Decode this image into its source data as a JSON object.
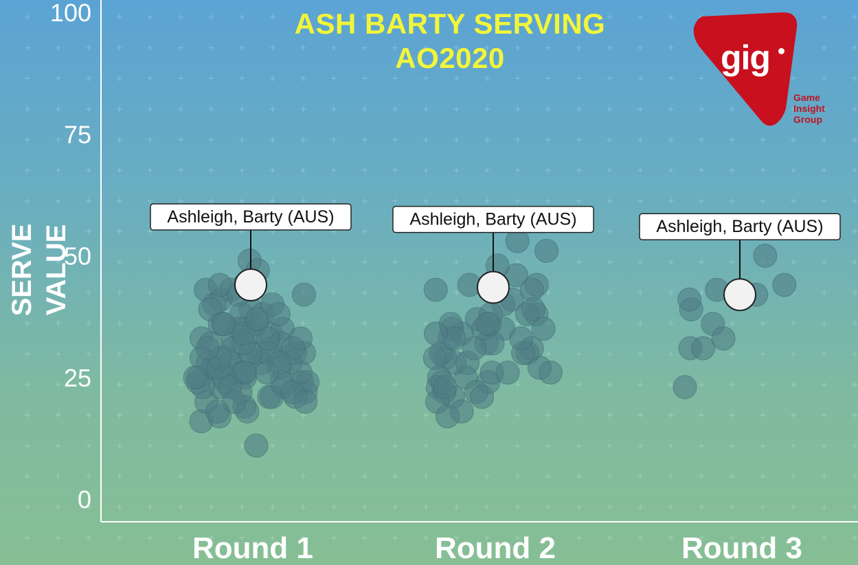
{
  "title": [
    "ASH BARTY SERVING",
    "AO2020"
  ],
  "logo": {
    "mark": "gig",
    "subtitle": [
      "Game",
      "Insight",
      "Group"
    ]
  },
  "colors": {
    "point": "#4f7d85",
    "point_stroke": "#3f6a72",
    "highlight": "#f2f2f2",
    "title": "#f2f53a",
    "logo": "#c8101e"
  },
  "chart_data": {
    "type": "scatter",
    "ylabel": "SERVE VALUE",
    "xlabel": "",
    "ylim": [
      0,
      100
    ],
    "yticks": [
      0,
      25,
      50,
      75,
      100
    ],
    "categories": [
      "Round 1",
      "Round 2",
      "Round 3"
    ],
    "grid": "dotted crosses",
    "series": [
      {
        "category": "Round 1",
        "values": [
          49,
          47,
          43,
          41,
          35,
          34,
          33,
          30,
          28,
          26,
          24,
          23,
          21,
          16,
          39,
          36,
          34,
          32,
          30,
          29,
          27,
          25,
          24,
          22,
          20,
          44,
          42,
          40,
          38,
          36,
          31,
          29,
          27,
          24,
          19,
          17,
          11,
          43,
          39,
          35,
          33,
          31,
          29,
          26,
          23,
          21,
          18,
          44,
          38,
          35,
          32,
          30,
          28,
          27,
          25,
          23,
          24,
          22,
          21,
          33,
          30,
          28,
          26,
          30,
          32,
          28,
          26,
          34,
          36,
          29,
          27,
          31,
          25,
          24,
          22,
          20,
          33,
          31,
          28,
          26,
          37,
          25,
          23,
          20,
          18,
          42,
          40,
          38,
          36
        ],
        "highlight": {
          "value": 44,
          "label": "Ashleigh, Barty (AUS)"
        }
      },
      {
        "category": "Round 2",
        "values": [
          51,
          43,
          37,
          35,
          32,
          29,
          26,
          24,
          44,
          40,
          36,
          33,
          30,
          27,
          25,
          23,
          21,
          53,
          46,
          41,
          38,
          34,
          31,
          28,
          25,
          22,
          20,
          48,
          43,
          39,
          35,
          32,
          30,
          28,
          26,
          24,
          22,
          18,
          44,
          38,
          36,
          33,
          29,
          26,
          23,
          21,
          17,
          38,
          35,
          34,
          30,
          36,
          33,
          31,
          35
        ],
        "highlight": {
          "value": 43.5,
          "label": "Ashleigh, Barty (AUS)"
        }
      },
      {
        "category": "Round 3",
        "values": [
          50,
          42,
          36,
          33,
          31,
          44,
          39,
          41,
          31,
          43,
          23
        ],
        "highlight": {
          "value": 42,
          "label": "Ashleigh, Barty (AUS)"
        }
      }
    ]
  }
}
